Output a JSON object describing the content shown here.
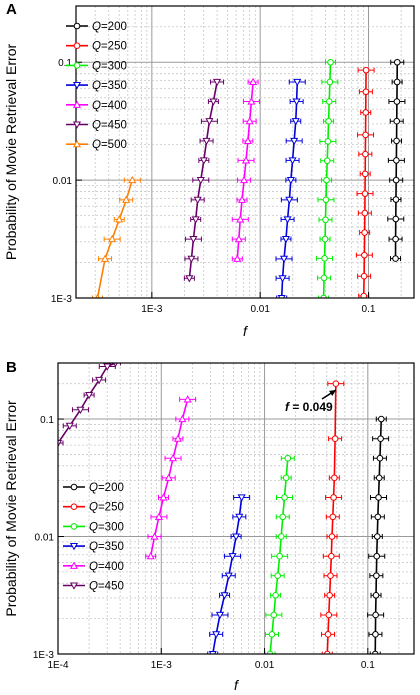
{
  "chart_data": [
    {
      "type": "line",
      "panel_label": "A",
      "xlabel": "f",
      "ylabel": "Probability of Movie Retrieval Error",
      "xscale": "log",
      "yscale": "log",
      "xlim": [
        0.0001995,
        0.263
      ],
      "ylim": [
        0.001,
        0.3
      ],
      "x_ticks": [
        0.001,
        0.01,
        0.1
      ],
      "x_tick_labels": [
        "1E-3",
        "0.01",
        "0.1"
      ],
      "y_ticks": [
        0.001,
        0.01,
        0.1
      ],
      "y_tick_labels": [
        "1E-3",
        "0.01",
        "0.1"
      ],
      "grid": true,
      "legend_position": "top-left",
      "legend_var": "Q",
      "series": [
        {
          "name": "=200",
          "color": "#000000",
          "marker": "circle",
          "x": [
            0.1776,
            0.1778,
            0.1785,
            0.1792,
            0.18,
            0.1808,
            0.1815,
            0.1822,
            0.1829,
            0.1837,
            0.1842
          ],
          "y": [
            0.00216,
            0.00316,
            0.00468,
            0.00685,
            0.01,
            0.0147,
            0.0215,
            0.0316,
            0.0464,
            0.068,
            0.1
          ]
        },
        {
          "name": "=250",
          "color": "#ff0000",
          "marker": "circle",
          "x": [
            0.0904,
            0.0911,
            0.0916,
            0.0921,
            0.0925,
            0.0928,
            0.0932,
            0.0935,
            0.0939,
            0.0943,
            0.0946,
            0.095
          ],
          "y": [
            0.00104,
            0.00153,
            0.00231,
            0.00359,
            0.00525,
            0.00768,
            0.0113,
            0.0166,
            0.0242,
            0.0375,
            0.0562,
            0.0857
          ]
        },
        {
          "name": "=300",
          "color": "#00ee00",
          "marker": "circle",
          "x": [
            0.0385,
            0.0389,
            0.0393,
            0.0397,
            0.0401,
            0.0405,
            0.041,
            0.0416,
            0.0422,
            0.0428,
            0.0434,
            0.044,
            0.0446
          ],
          "y": [
            0.001,
            0.00148,
            0.00217,
            0.00316,
            0.00461,
            0.00681,
            0.01,
            0.0146,
            0.0213,
            0.0316,
            0.0464,
            0.068,
            0.1
          ]
        },
        {
          "name": "=350",
          "color": "#0000dd",
          "marker": "triangle-down",
          "x": [
            0.0158,
            0.0161,
            0.0166,
            0.0173,
            0.0179,
            0.0186,
            0.0192,
            0.0199,
            0.0206,
            0.0213,
            0.0217,
            0.022
          ],
          "y": [
            0.001,
            0.00147,
            0.00215,
            0.00316,
            0.00464,
            0.0068,
            0.01,
            0.0147,
            0.0215,
            0.0316,
            0.0464,
            0.068
          ]
        },
        {
          "name": "=400",
          "color": "#ff00ff",
          "marker": "triangle-up",
          "x": [
            0.00615,
            0.00635,
            0.00655,
            0.0068,
            0.0071,
            0.0074,
            0.0077,
            0.008,
            0.0083,
            0.0086
          ],
          "y": [
            0.00215,
            0.00316,
            0.00464,
            0.0068,
            0.01,
            0.0147,
            0.0215,
            0.0316,
            0.0464,
            0.068
          ]
        },
        {
          "name": "=450",
          "color": "#660066",
          "marker": "triangle-down",
          "x": [
            0.00222,
            0.00232,
            0.00242,
            0.00254,
            0.00265,
            0.00283,
            0.00302,
            0.0032,
            0.0034,
            0.0037,
            0.004
          ],
          "y": [
            0.00147,
            0.00215,
            0.00316,
            0.00464,
            0.0068,
            0.01,
            0.0147,
            0.0215,
            0.0316,
            0.0464,
            0.068
          ]
        },
        {
          "name": "=500",
          "color": "#ff7f00",
          "marker": "triangle-up",
          "x": [
            0.000315,
            0.00037,
            0.00043,
            0.0005,
            0.00058,
            0.00066
          ],
          "y": [
            0.001,
            0.00215,
            0.00316,
            0.00464,
            0.0068,
            0.01
          ]
        }
      ]
    },
    {
      "type": "line",
      "panel_label": "B",
      "xlabel": "f",
      "ylabel": "Probability of Movie Retrieval Error",
      "xscale": "log",
      "yscale": "log",
      "xlim": [
        0.0001,
        0.28
      ],
      "ylim": [
        0.001,
        0.3
      ],
      "x_ticks": [
        0.0001,
        0.001,
        0.01,
        0.1
      ],
      "x_tick_labels": [
        "1E-4",
        "1E-3",
        "0.01",
        "0.1"
      ],
      "y_ticks": [
        0.001,
        0.01,
        0.1
      ],
      "y_tick_labels": [
        "1E-3",
        "0.01",
        "0.1"
      ],
      "grid": true,
      "legend_position": "middle-left",
      "legend_var": "Q",
      "annotation": {
        "text": "f = 0.049",
        "x": 0.049,
        "y": 0.2
      },
      "series": [
        {
          "name": "=200",
          "color": "#000000",
          "marker": "circle",
          "x": [
            0.118,
            0.1185,
            0.119,
            0.12,
            0.121,
            0.122,
            0.1235,
            0.125,
            0.127,
            0.129,
            0.131,
            0.133,
            0.135
          ],
          "y": [
            0.001,
            0.00147,
            0.00215,
            0.00316,
            0.00464,
            0.0068,
            0.01,
            0.0147,
            0.0215,
            0.0316,
            0.0464,
            0.068,
            0.1
          ]
        },
        {
          "name": "=250",
          "color": "#ff0000",
          "marker": "circle",
          "x": [
            0.0405,
            0.0412,
            0.0419,
            0.0427,
            0.0435,
            0.0443,
            0.045,
            0.0458,
            0.0466,
            0.0474,
            0.0482,
            0.049
          ],
          "y": [
            0.001,
            0.00147,
            0.00215,
            0.00316,
            0.00464,
            0.0068,
            0.01,
            0.0147,
            0.0215,
            0.0316,
            0.068,
            0.2
          ]
        },
        {
          "name": "=300",
          "color": "#00ee00",
          "marker": "circle",
          "x": [
            0.0113,
            0.0118,
            0.0123,
            0.0128,
            0.0134,
            0.014,
            0.0145,
            0.015,
            0.0156,
            0.0162,
            0.0168
          ],
          "y": [
            0.001,
            0.00147,
            0.00215,
            0.00316,
            0.00464,
            0.0068,
            0.01,
            0.0147,
            0.0215,
            0.0316,
            0.0464
          ]
        },
        {
          "name": "=350",
          "color": "#0000dd",
          "marker": "triangle-down",
          "x": [
            0.00315,
            0.0034,
            0.0037,
            0.0041,
            0.0045,
            0.0049,
            0.0053,
            0.0057,
            0.006
          ],
          "y": [
            0.001,
            0.00147,
            0.00215,
            0.00316,
            0.00464,
            0.0068,
            0.01,
            0.0147,
            0.0215
          ]
        },
        {
          "name": "=400",
          "color": "#ff00ff",
          "marker": "triangle-up",
          "x": [
            0.00079,
            0.00086,
            0.00095,
            0.00105,
            0.00118,
            0.0013,
            0.00145,
            0.0016,
            0.0018
          ],
          "y": [
            0.0068,
            0.01,
            0.0147,
            0.0215,
            0.0316,
            0.0464,
            0.068,
            0.1,
            0.147
          ]
        },
        {
          "name": "=450",
          "color": "#660066",
          "marker": "triangle-down",
          "x": [
            0.0001,
            0.00013,
            0.000165,
            0.0002,
            0.00025,
            0.0003,
            0.00036
          ],
          "y": [
            0.0625,
            0.0875,
            0.12,
            0.16,
            0.215,
            0.28,
            0.3
          ]
        }
      ]
    }
  ]
}
